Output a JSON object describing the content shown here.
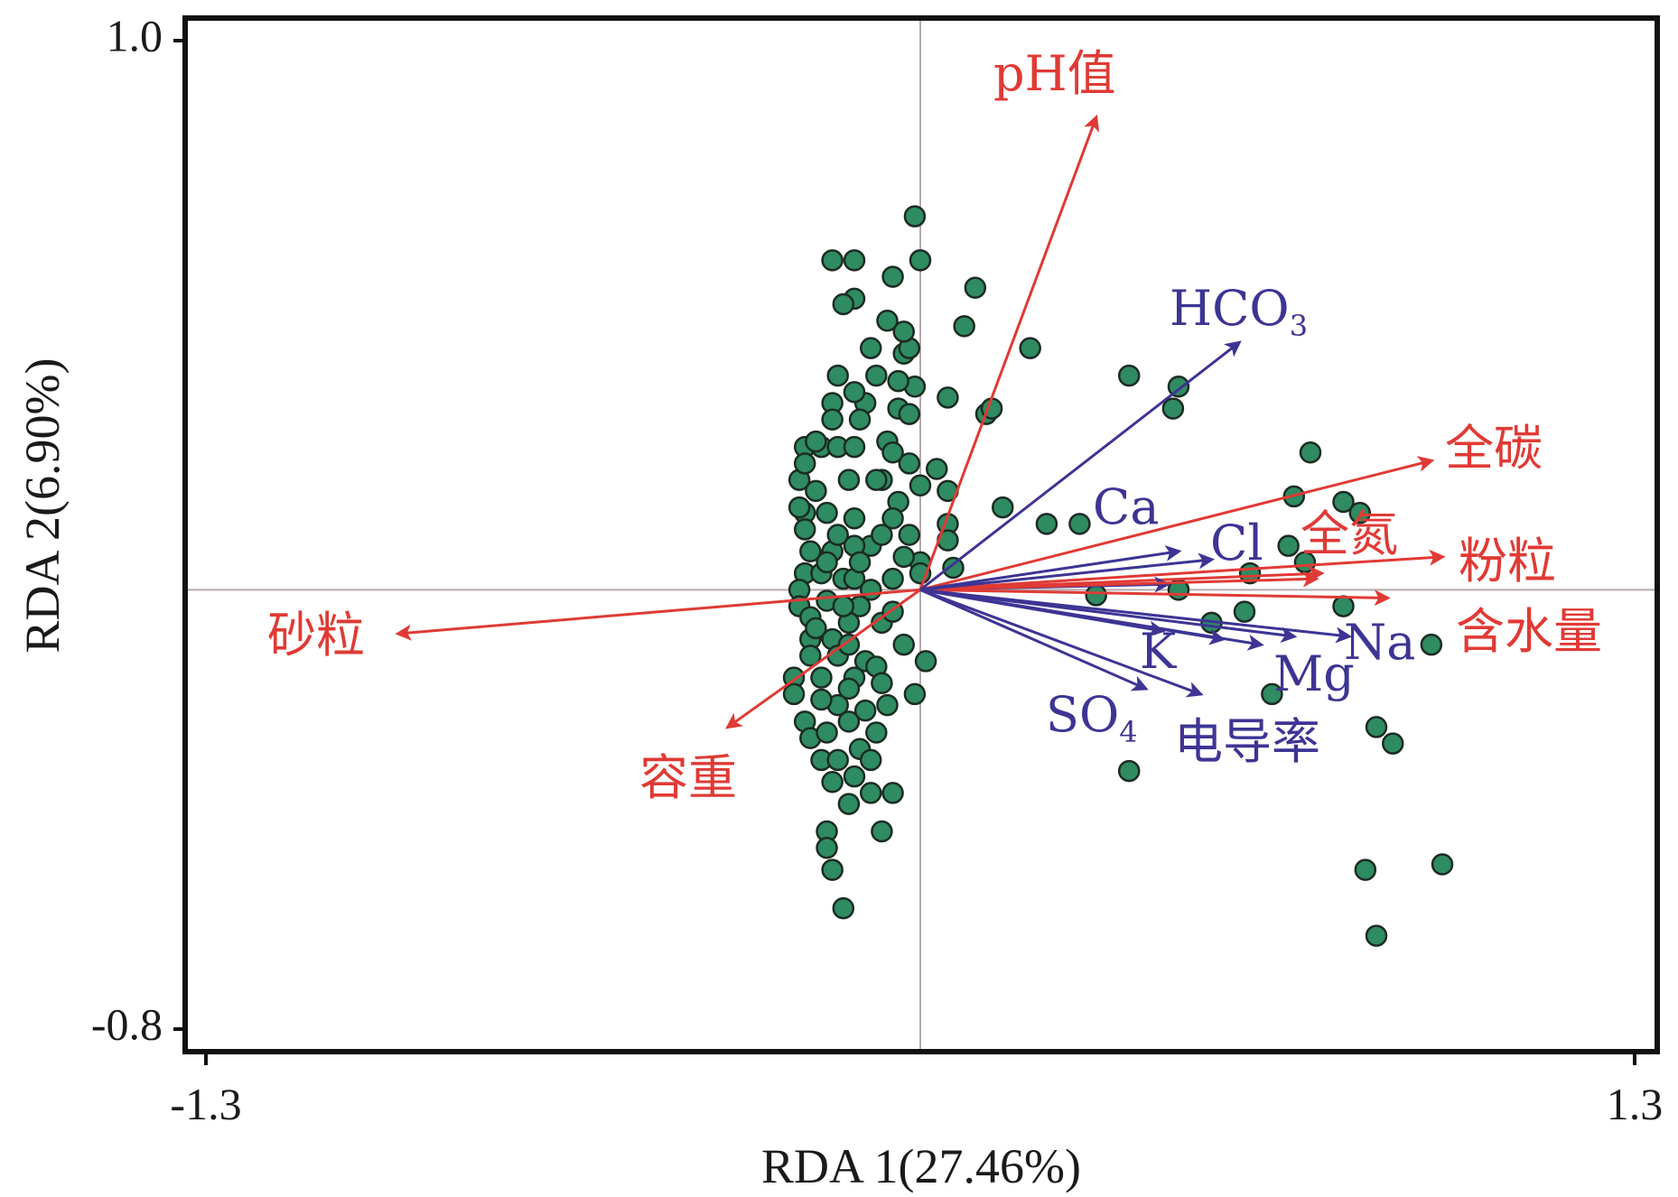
{
  "chart_data": {
    "type": "scatter",
    "subtype": "rda-biplot",
    "xlabel": "RDA 1(27.46%)",
    "ylabel": "RDA 2(6.90%)",
    "xlim": [
      -1.3,
      1.3
    ],
    "ylim": [
      -0.8,
      1.0
    ],
    "x_ticks": [
      "-1.3",
      "1.3"
    ],
    "y_ticks": [
      "1.0",
      "-0.8"
    ],
    "reference_lines": {
      "x": 0,
      "y": 0
    },
    "point_color": "#2e8b62",
    "point_stroke": "#1c2b22",
    "env_color": "#e03a35",
    "ion_color": "#3d3494",
    "axis_color": "#111111",
    "ref_line_color": "#b5a9a9",
    "vectors": [
      {
        "name": "pH值",
        "group": "env",
        "x": 0.32,
        "y": 0.86,
        "label": "pH值"
      },
      {
        "name": "全碳",
        "group": "env",
        "x": 0.93,
        "y": 0.235,
        "label": "全碳"
      },
      {
        "name": "粉粒",
        "group": "env",
        "x": 0.95,
        "y": 0.06,
        "label": "粉粒"
      },
      {
        "name": "全氮",
        "group": "env",
        "x": 0.72,
        "y": 0.02,
        "label": "全氮"
      },
      {
        "name": "含水量",
        "group": "env",
        "x": 0.85,
        "y": -0.015,
        "label": "含水量"
      },
      {
        "name": "砂粒",
        "group": "env",
        "x": -0.95,
        "y": -0.08,
        "label": "砂粒"
      },
      {
        "name": "容重",
        "group": "env",
        "x": -0.35,
        "y": -0.25,
        "label": "容重"
      },
      {
        "name": "HCO3",
        "group": "ion",
        "x": 0.58,
        "y": 0.45,
        "label": "HCO",
        "sub": "3"
      },
      {
        "name": "Ca",
        "group": "ion",
        "x": 0.47,
        "y": 0.07,
        "label": "Ca"
      },
      {
        "name": "Cl",
        "group": "ion",
        "x": 0.53,
        "y": 0.055,
        "label": "Cl"
      },
      {
        "name": "Na",
        "group": "ion",
        "x": 0.78,
        "y": -0.085,
        "label": "Na"
      },
      {
        "name": "Mg",
        "group": "ion",
        "x": 0.62,
        "y": -0.1,
        "label": "Mg"
      },
      {
        "name": "K",
        "group": "ion",
        "x": 0.55,
        "y": -0.09,
        "label": "K"
      },
      {
        "name": "SO4",
        "group": "ion",
        "x": 0.41,
        "y": -0.18,
        "label": "SO",
        "sub": "4"
      },
      {
        "name": "电导率",
        "group": "ion",
        "x": 0.51,
        "y": -0.19,
        "label": "电导率"
      }
    ],
    "extra_vectors": [
      {
        "group": "env",
        "x": 0.73,
        "y": 0.03
      },
      {
        "group": "ion",
        "x": 0.45,
        "y": 0.01
      },
      {
        "group": "ion",
        "x": 0.44,
        "y": -0.075
      },
      {
        "group": "ion",
        "x": 0.68,
        "y": -0.085
      }
    ],
    "points": [
      [
        -0.01,
        0.68
      ],
      [
        -0.16,
        0.6
      ],
      [
        -0.12,
        0.6
      ],
      [
        0.0,
        0.6
      ],
      [
        -0.05,
        0.57
      ],
      [
        0.1,
        0.55
      ],
      [
        -0.12,
        0.53
      ],
      [
        -0.14,
        0.52
      ],
      [
        0.08,
        0.48
      ],
      [
        0.2,
        0.44
      ],
      [
        -0.09,
        0.44
      ],
      [
        -0.03,
        0.43
      ],
      [
        -0.02,
        0.44
      ],
      [
        0.38,
        0.39
      ],
      [
        -0.15,
        0.39
      ],
      [
        -0.08,
        0.39
      ],
      [
        -0.01,
        0.37
      ],
      [
        0.05,
        0.35
      ],
      [
        0.47,
        0.37
      ],
      [
        -0.16,
        0.34
      ],
      [
        -0.1,
        0.34
      ],
      [
        -0.04,
        0.33
      ],
      [
        0.12,
        0.32
      ],
      [
        0.13,
        0.33
      ],
      [
        0.46,
        0.33
      ],
      [
        -0.11,
        0.31
      ],
      [
        -0.02,
        0.32
      ],
      [
        -0.06,
        0.27
      ],
      [
        -0.21,
        0.26
      ],
      [
        -0.18,
        0.26
      ],
      [
        -0.15,
        0.26
      ],
      [
        -0.12,
        0.26
      ],
      [
        -0.05,
        0.25
      ],
      [
        -0.02,
        0.23
      ],
      [
        0.03,
        0.22
      ],
      [
        0.71,
        0.25
      ],
      [
        -0.22,
        0.2
      ],
      [
        -0.13,
        0.2
      ],
      [
        -0.07,
        0.2
      ],
      [
        0.0,
        0.19
      ],
      [
        0.05,
        0.18
      ],
      [
        0.68,
        0.17
      ],
      [
        0.77,
        0.16
      ],
      [
        -0.04,
        0.16
      ],
      [
        0.15,
        0.15
      ],
      [
        0.8,
        0.14
      ],
      [
        -0.21,
        0.14
      ],
      [
        -0.17,
        0.14
      ],
      [
        -0.12,
        0.13
      ],
      [
        -0.05,
        0.13
      ],
      [
        0.05,
        0.12
      ],
      [
        0.23,
        0.12
      ],
      [
        0.29,
        0.12
      ],
      [
        -0.21,
        0.11
      ],
      [
        -0.02,
        0.1
      ],
      [
        0.05,
        0.09
      ],
      [
        -0.09,
        0.08
      ],
      [
        -0.2,
        0.07
      ],
      [
        -0.16,
        0.07
      ],
      [
        0.0,
        0.05
      ],
      [
        0.67,
        0.08
      ],
      [
        0.0,
        0.03
      ],
      [
        0.06,
        0.04
      ],
      [
        -0.21,
        0.03
      ],
      [
        -0.18,
        0.03
      ],
      [
        -0.14,
        0.02
      ],
      [
        -0.12,
        0.02
      ],
      [
        0.6,
        0.03
      ],
      [
        0.7,
        0.05
      ],
      [
        -0.22,
        0.0
      ],
      [
        -0.09,
        0.0
      ],
      [
        0.32,
        -0.01
      ],
      [
        0.47,
        0.0
      ],
      [
        0.77,
        -0.03
      ],
      [
        -0.22,
        -0.03
      ],
      [
        -0.17,
        -0.02
      ],
      [
        -0.11,
        -0.03
      ],
      [
        0.59,
        -0.04
      ],
      [
        -0.13,
        -0.06
      ],
      [
        -0.07,
        -0.06
      ],
      [
        0.53,
        -0.06
      ],
      [
        -0.2,
        -0.09
      ],
      [
        -0.16,
        -0.09
      ],
      [
        -0.03,
        -0.1
      ],
      [
        0.93,
        -0.1
      ],
      [
        -0.2,
        -0.12
      ],
      [
        -0.15,
        -0.12
      ],
      [
        -0.1,
        -0.13
      ],
      [
        0.01,
        -0.13
      ],
      [
        -0.23,
        -0.16
      ],
      [
        -0.18,
        -0.16
      ],
      [
        -0.12,
        -0.16
      ],
      [
        -0.01,
        -0.19
      ],
      [
        0.64,
        -0.19
      ],
      [
        -0.23,
        -0.19
      ],
      [
        -0.15,
        -0.21
      ],
      [
        -0.06,
        -0.21
      ],
      [
        -0.21,
        -0.24
      ],
      [
        -0.13,
        -0.24
      ],
      [
        -0.08,
        -0.26
      ],
      [
        -0.2,
        -0.27
      ],
      [
        -0.11,
        -0.29
      ],
      [
        0.83,
        -0.25
      ],
      [
        0.86,
        -0.28
      ],
      [
        -0.18,
        -0.31
      ],
      [
        -0.15,
        -0.31
      ],
      [
        -0.09,
        -0.31
      ],
      [
        0.38,
        -0.33
      ],
      [
        -0.16,
        -0.35
      ],
      [
        -0.09,
        -0.37
      ],
      [
        -0.05,
        -0.37
      ],
      [
        -0.13,
        -0.39
      ],
      [
        -0.17,
        -0.44
      ],
      [
        -0.07,
        -0.44
      ],
      [
        -0.17,
        -0.47
      ],
      [
        0.95,
        -0.5
      ],
      [
        0.81,
        -0.51
      ],
      [
        -0.16,
        -0.51
      ],
      [
        -0.14,
        -0.58
      ],
      [
        0.83,
        -0.63
      ],
      [
        -0.19,
        0.27
      ],
      [
        -0.08,
        0.2
      ],
      [
        -0.2,
        -0.05
      ],
      [
        -0.05,
        -0.04
      ],
      [
        -0.18,
        -0.2
      ],
      [
        -0.1,
        -0.22
      ],
      [
        -0.12,
        0.08
      ],
      [
        -0.15,
        0.1
      ],
      [
        -0.07,
        0.1
      ],
      [
        -0.13,
        -0.1
      ],
      [
        -0.19,
        0.18
      ],
      [
        -0.03,
        0.06
      ],
      [
        -0.21,
        0.23
      ],
      [
        -0.11,
        0.05
      ],
      [
        -0.08,
        -0.14
      ],
      [
        -0.14,
        -0.03
      ],
      [
        -0.04,
        0.38
      ],
      [
        -0.06,
        0.49
      ],
      [
        -0.03,
        0.47
      ],
      [
        -0.12,
        0.36
      ],
      [
        -0.16,
        0.31
      ],
      [
        -0.22,
        0.15
      ],
      [
        -0.17,
        0.05
      ],
      [
        -0.05,
        0.02
      ],
      [
        -0.19,
        -0.07
      ],
      [
        -0.13,
        -0.18
      ],
      [
        -0.07,
        -0.17
      ],
      [
        -0.17,
        -0.26
      ],
      [
        -0.12,
        -0.34
      ]
    ]
  }
}
